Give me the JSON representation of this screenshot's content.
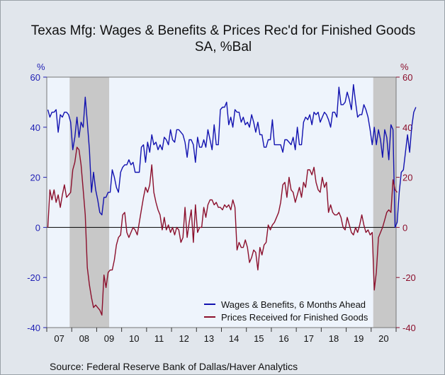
{
  "chart_data": {
    "type": "line",
    "title": "Texas Mfg: Wages & Benefits & Prices Rec'd for Finished Goods",
    "subtitle": "SA, %Bal",
    "left_unit": "%",
    "right_unit": "%",
    "source": "Source:  Federal Reserve Bank of Dallas/Haver Analytics",
    "ylim": [
      -40,
      60
    ],
    "yticks": [
      60,
      40,
      20,
      0,
      -20,
      -40
    ],
    "x_start": "2007-01",
    "x_end": "2020-12",
    "x_labels": [
      "07",
      "08",
      "09",
      "10",
      "11",
      "12",
      "13",
      "14",
      "15",
      "16",
      "17",
      "18",
      "19",
      "20"
    ],
    "recessions": [
      [
        "2007-12",
        "2009-06"
      ],
      [
        "2020-02",
        "2020-12"
      ]
    ],
    "legend_position": "bottom-right",
    "colors": {
      "left_axis": "#1f1fb4",
      "right_axis": "#8b0f2c",
      "recession": "#c8c8c8",
      "plot_bg": "#eef4fc"
    },
    "series": [
      {
        "name": "Wages & Benefits, 6 Months Ahead",
        "color": "#1212b0",
        "values": [
          47,
          44,
          46,
          46,
          47,
          38,
          45,
          44,
          46,
          46,
          45,
          42,
          31,
          36,
          44,
          36,
          42,
          40,
          52,
          42,
          31,
          14,
          22,
          15,
          11,
          6,
          5,
          12,
          12,
          14,
          14,
          23,
          20,
          16,
          14,
          22,
          24,
          25,
          25,
          27,
          25,
          26,
          22,
          22,
          22,
          32,
          33,
          26,
          34,
          30,
          37,
          33,
          34,
          31,
          33,
          31,
          36,
          35,
          33,
          39,
          35,
          34,
          39,
          39,
          38,
          37,
          34,
          28,
          35,
          35,
          33,
          26,
          36,
          32,
          32,
          35,
          32,
          39,
          35,
          31,
          41,
          33,
          33,
          47,
          48,
          48,
          50,
          41,
          44,
          40,
          47,
          46,
          46,
          42,
          44,
          41,
          42,
          40,
          45,
          42,
          38,
          42,
          37,
          37,
          32,
          32,
          35,
          35,
          43,
          33,
          33,
          33,
          33,
          30,
          35,
          35,
          34,
          33,
          36,
          31,
          40,
          33,
          33,
          42,
          44,
          43,
          45,
          41,
          46,
          45,
          46,
          42,
          44,
          46,
          45,
          43,
          40,
          46,
          46,
          44,
          56,
          49,
          49,
          50,
          54,
          51,
          47,
          57,
          50,
          44,
          45,
          45,
          49,
          47,
          44,
          39,
          33,
          40,
          33,
          39,
          35,
          28,
          39,
          36,
          27,
          41,
          39,
          0,
          2,
          14,
          22,
          23,
          30,
          37,
          30,
          40,
          46,
          48
        ]
      },
      {
        "name": "Prices Received for Finished Goods",
        "color": "#8b0f2c",
        "values": [
          0,
          15,
          11,
          15,
          10,
          13,
          8,
          13,
          17,
          12,
          13,
          14,
          23,
          26,
          32,
          31,
          25,
          15,
          5,
          -16,
          -23,
          -28,
          -32,
          -31,
          -32,
          -33,
          -35,
          -19,
          -24,
          -18,
          -17,
          -17,
          -13,
          -7,
          -4,
          -3,
          5,
          6,
          -2,
          -4,
          -2,
          0,
          -1,
          -3,
          2,
          7,
          12,
          16,
          14,
          17,
          25,
          14,
          10,
          7,
          5,
          -1,
          4,
          -1,
          1,
          -2,
          0,
          -3,
          0,
          -1,
          -6,
          -4,
          8,
          -4,
          2,
          7,
          -6,
          9,
          -2,
          0,
          0,
          8,
          4,
          9,
          11,
          11,
          9,
          10,
          8,
          8,
          7,
          9,
          8,
          9,
          7,
          11,
          8,
          -9,
          -6,
          -8,
          -8,
          -5,
          -8,
          -14,
          -12,
          -9,
          -10,
          -17,
          -8,
          -11,
          -7,
          -6,
          1,
          -1,
          1,
          2,
          4,
          6,
          10,
          17,
          18,
          12,
          20,
          15,
          14,
          10,
          13,
          16,
          12,
          18,
          16,
          23,
          23,
          21,
          24,
          18,
          15,
          14,
          20,
          16,
          18,
          6,
          9,
          6,
          5,
          5,
          6,
          4,
          0,
          -1,
          4,
          1,
          -2,
          -3,
          0,
          -2,
          1,
          5,
          1,
          -2,
          -1,
          -3,
          -2,
          -25,
          -18,
          -4,
          -2,
          0,
          3,
          6,
          7,
          6,
          19,
          15,
          14
        ]
      }
    ]
  }
}
